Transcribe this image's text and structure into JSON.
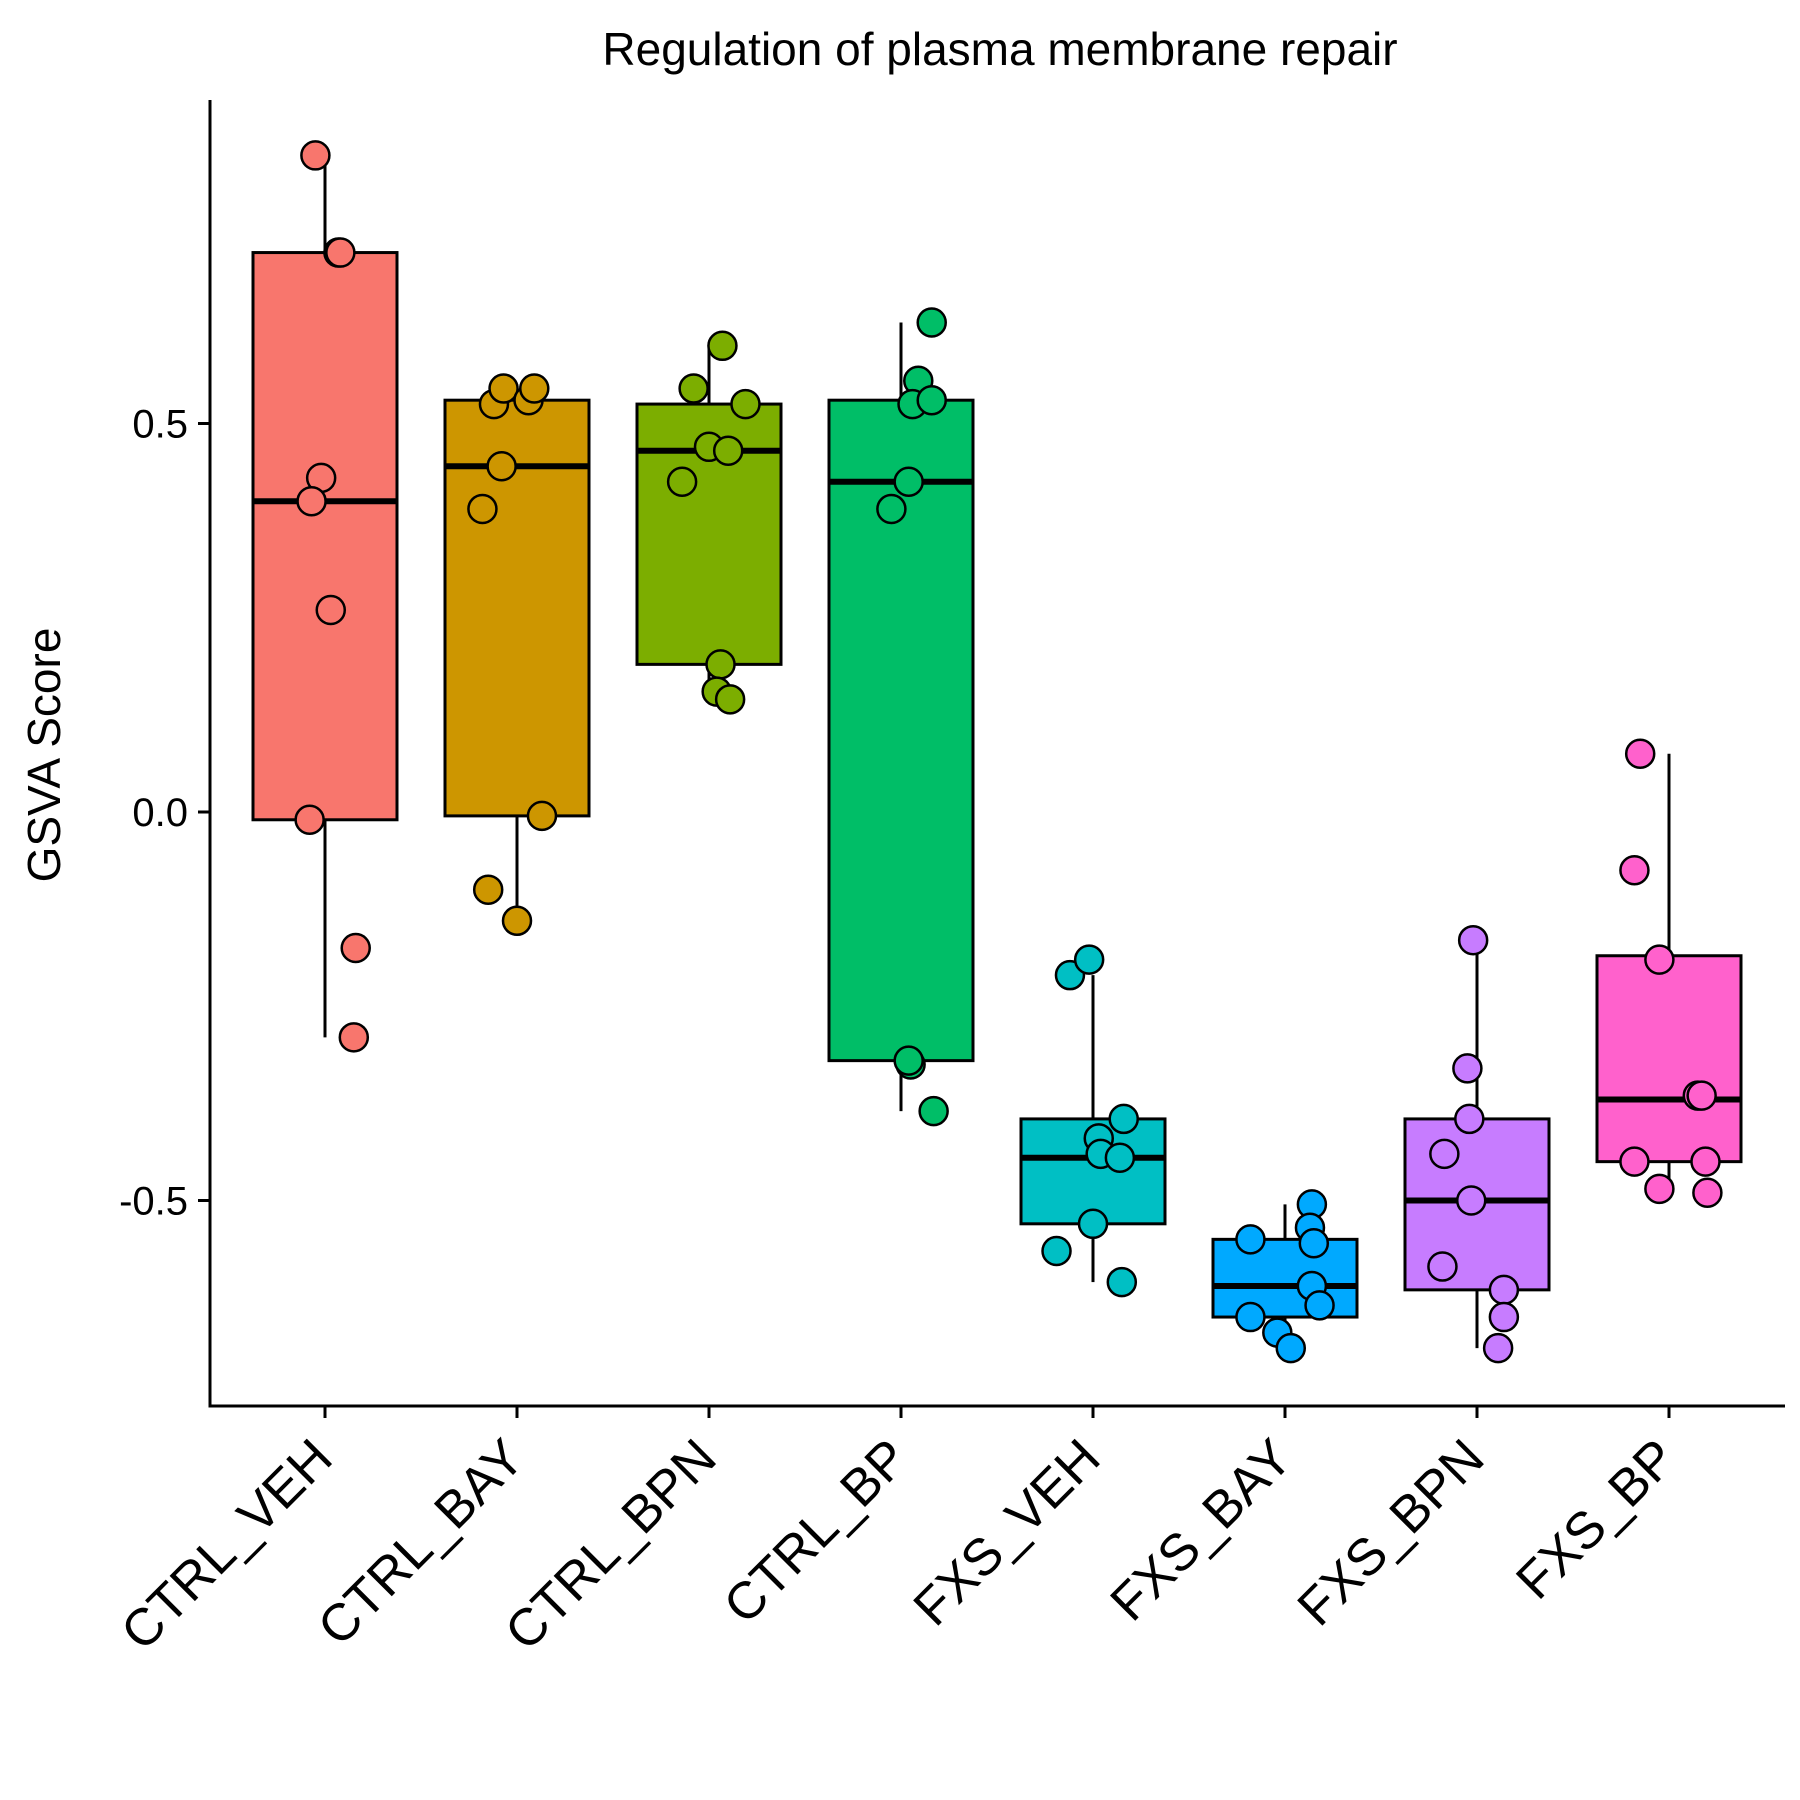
{
  "chart_data": {
    "type": "box",
    "title": "Regulation of plasma membrane repair",
    "xlabel": "",
    "ylabel": "GSVA Score",
    "ylim": [
      -0.76,
      0.87
    ],
    "yticks": [
      0.5,
      0.0,
      -0.5
    ],
    "ytick_labels": [
      "0.5",
      "0.0",
      "-0.5"
    ],
    "grid": false,
    "legend": "none",
    "categories": [
      "CTRL_VEH",
      "CTRL_BAY",
      "CTRL_BPN",
      "CTRL_BP",
      "FXS_VEH",
      "FXS_BAY",
      "FXS_BPN",
      "FXS_BP"
    ],
    "colors": [
      "#F8766D",
      "#CD9600",
      "#7CAE00",
      "#00BE67",
      "#00BFC4",
      "#00A9FF",
      "#C77CFF",
      "#FF61CC"
    ],
    "boxes": [
      {
        "q1": -0.01,
        "median": 0.4,
        "q3": 0.72,
        "whisker_low": -0.29,
        "whisker_high": 0.84
      },
      {
        "q1": -0.005,
        "median": 0.445,
        "q3": 0.53,
        "whisker_low": -0.14,
        "whisker_high": 0.55
      },
      {
        "q1": 0.19,
        "median": 0.465,
        "q3": 0.525,
        "whisker_low": 0.15,
        "whisker_high": 0.6
      },
      {
        "q1": -0.32,
        "median": 0.425,
        "q3": 0.53,
        "whisker_low": -0.385,
        "whisker_high": 0.63
      },
      {
        "q1": -0.53,
        "median": -0.445,
        "q3": -0.395,
        "whisker_low": -0.605,
        "whisker_high": -0.21
      },
      {
        "q1": -0.65,
        "median": -0.61,
        "q3": -0.55,
        "whisker_low": -0.69,
        "whisker_high": -0.505
      },
      {
        "q1": -0.615,
        "median": -0.5,
        "q3": -0.395,
        "whisker_low": -0.69,
        "whisker_high": -0.165
      },
      {
        "q1": -0.45,
        "median": -0.37,
        "q3": -0.185,
        "whisker_low": -0.49,
        "whisker_high": 0.075
      }
    ],
    "points": [
      [
        [
          -0.05,
          0.845
        ],
        [
          0.07,
          0.72
        ],
        [
          0.08,
          0.72
        ],
        [
          -0.02,
          0.43
        ],
        [
          -0.07,
          0.4
        ],
        [
          0.03,
          0.26
        ],
        [
          -0.08,
          -0.01
        ],
        [
          0.16,
          -0.175
        ],
        [
          0.15,
          -0.29
        ]
      ],
      [
        [
          -0.12,
          0.525
        ],
        [
          -0.07,
          0.545
        ],
        [
          0.06,
          0.53
        ],
        [
          0.09,
          0.545
        ],
        [
          -0.08,
          0.445
        ],
        [
          -0.18,
          0.39
        ],
        [
          0.13,
          -0.005
        ],
        [
          -0.15,
          -0.1
        ],
        [
          0.0,
          -0.14
        ]
      ],
      [
        [
          -0.08,
          0.545
        ],
        [
          0.07,
          0.6
        ],
        [
          0.19,
          0.525
        ],
        [
          0.0,
          0.47
        ],
        [
          0.1,
          0.465
        ],
        [
          -0.14,
          0.425
        ],
        [
          0.06,
          0.19
        ],
        [
          0.04,
          0.155
        ],
        [
          0.11,
          0.145
        ]
      ],
      [
        [
          0.16,
          0.63
        ],
        [
          0.09,
          0.555
        ],
        [
          0.06,
          0.525
        ],
        [
          0.16,
          0.53
        ],
        [
          0.04,
          0.425
        ],
        [
          -0.05,
          0.39
        ],
        [
          0.05,
          -0.325
        ],
        [
          0.04,
          -0.32
        ],
        [
          0.17,
          -0.385
        ]
      ],
      [
        [
          -0.12,
          -0.21
        ],
        [
          -0.02,
          -0.19
        ],
        [
          0.16,
          -0.395
        ],
        [
          0.03,
          -0.42
        ],
        [
          0.04,
          -0.44
        ],
        [
          0.14,
          -0.445
        ],
        [
          0.0,
          -0.53
        ],
        [
          -0.19,
          -0.565
        ],
        [
          0.15,
          -0.605
        ]
      ],
      [
        [
          -0.18,
          -0.55
        ],
        [
          0.14,
          -0.505
        ],
        [
          0.13,
          -0.535
        ],
        [
          0.15,
          -0.555
        ],
        [
          0.14,
          -0.61
        ],
        [
          0.18,
          -0.635
        ],
        [
          -0.18,
          -0.65
        ],
        [
          -0.04,
          -0.67
        ],
        [
          0.03,
          -0.69
        ]
      ],
      [
        [
          -0.02,
          -0.165
        ],
        [
          -0.05,
          -0.33
        ],
        [
          -0.04,
          -0.395
        ],
        [
          -0.17,
          -0.44
        ],
        [
          -0.03,
          -0.5
        ],
        [
          -0.18,
          -0.585
        ],
        [
          0.14,
          -0.615
        ],
        [
          0.14,
          -0.65
        ],
        [
          0.11,
          -0.69
        ]
      ],
      [
        [
          -0.15,
          0.075
        ],
        [
          -0.18,
          -0.075
        ],
        [
          -0.05,
          -0.19
        ],
        [
          0.15,
          -0.365
        ],
        [
          0.17,
          -0.365
        ],
        [
          -0.18,
          -0.45
        ],
        [
          0.19,
          -0.45
        ],
        [
          -0.05,
          -0.485
        ],
        [
          0.2,
          -0.49
        ]
      ]
    ]
  }
}
